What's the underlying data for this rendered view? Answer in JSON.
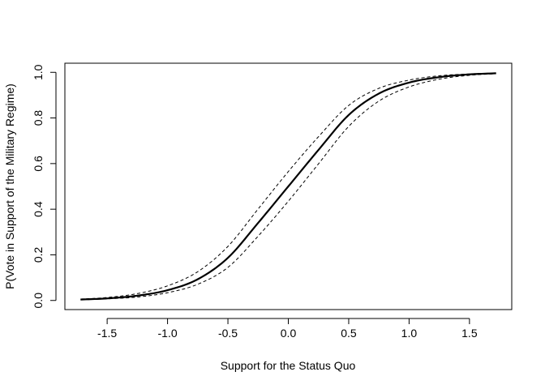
{
  "chart_data": {
    "type": "line",
    "title": "",
    "xlabel": "Support for the Status Quo",
    "ylabel": "P(Vote in Support of the Military Regime)",
    "xlim": [
      -1.85,
      1.85
    ],
    "ylim": [
      -0.04,
      1.04
    ],
    "xticks": [
      -1.5,
      -1.0,
      -0.5,
      0.0,
      0.5,
      1.0,
      1.5
    ],
    "xtick_labels": [
      "-1.5",
      "-1.0",
      "-0.5",
      "0.0",
      "0.5",
      "1.0",
      "1.5"
    ],
    "yticks": [
      0.0,
      0.2,
      0.4,
      0.6,
      0.8,
      1.0
    ],
    "ytick_labels": [
      "0.0",
      "0.2",
      "0.4",
      "0.6",
      "0.8",
      "1.0"
    ],
    "grid": false,
    "legend": "none",
    "x_range": [
      -1.72,
      1.72
    ],
    "series": [
      {
        "style": "solid",
        "color": "#000000",
        "x": [
          -1.72,
          -1.5,
          -1.25,
          -1.0,
          -0.75,
          -0.5,
          -0.25,
          0.0,
          0.25,
          0.5,
          0.75,
          1.0,
          1.25,
          1.5,
          1.72
        ],
        "y": [
          0.004,
          0.009,
          0.021,
          0.045,
          0.093,
          0.187,
          0.34,
          0.5,
          0.66,
          0.813,
          0.907,
          0.955,
          0.979,
          0.991,
          0.996
        ]
      },
      {
        "style": "dashed",
        "color": "#000000",
        "x": [
          -1.72,
          -1.5,
          -1.25,
          -1.0,
          -0.75,
          -0.5,
          -0.25,
          0.0,
          0.25,
          0.5,
          0.75,
          1.0,
          1.25,
          1.5,
          1.72
        ],
        "y": [
          0.006,
          0.013,
          0.03,
          0.064,
          0.126,
          0.237,
          0.401,
          0.565,
          0.718,
          0.855,
          0.93,
          0.966,
          0.985,
          0.993,
          0.997
        ]
      },
      {
        "style": "dashed",
        "color": "#000000",
        "x": [
          -1.72,
          -1.5,
          -1.25,
          -1.0,
          -0.75,
          -0.5,
          -0.25,
          0.0,
          0.25,
          0.5,
          0.75,
          1.0,
          1.25,
          1.5,
          1.72
        ],
        "y": [
          0.003,
          0.007,
          0.015,
          0.034,
          0.071,
          0.145,
          0.282,
          0.435,
          0.599,
          0.763,
          0.874,
          0.936,
          0.97,
          0.987,
          0.994
        ]
      }
    ]
  }
}
